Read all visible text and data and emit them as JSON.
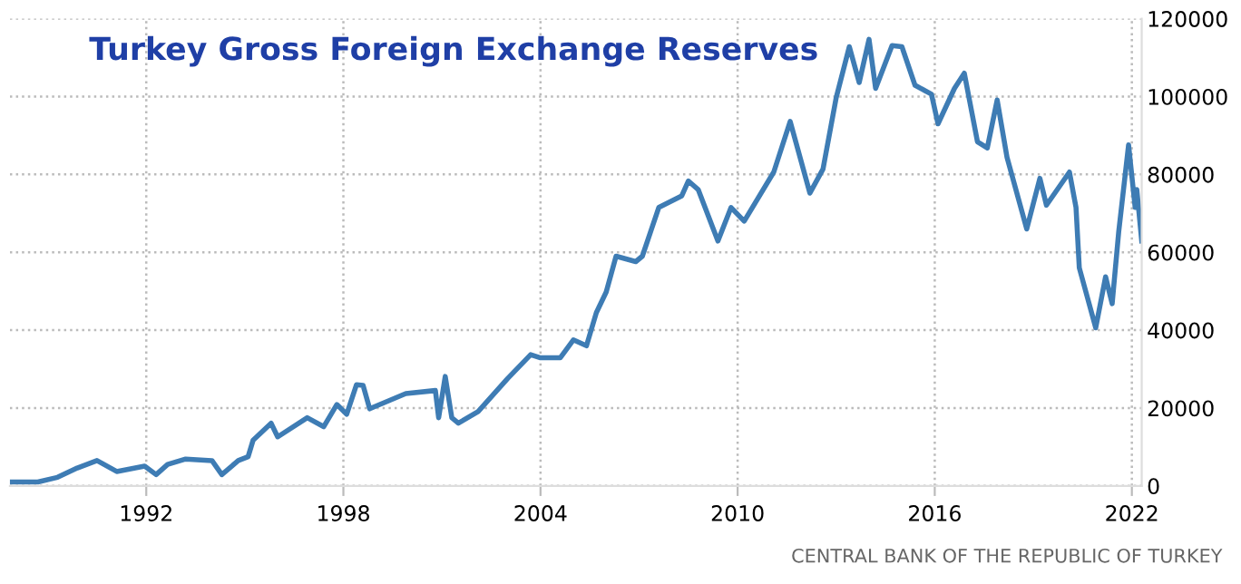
{
  "chart_data": {
    "type": "line",
    "title": "Turkey Gross Foreign Exchange Reserves",
    "annotations": [
      "CENTRAL BANK OF THE REPUBLIC OF TURKEY"
    ],
    "x": [
      1987.9,
      1988.7,
      1989.3,
      1989.9,
      1990.5,
      1991.1,
      1991.95,
      1992.3,
      1992.65,
      1993.2,
      1994.0,
      1994.3,
      1994.8,
      1995.1,
      1995.25,
      1995.8,
      1996.0,
      1996.9,
      1997.4,
      1997.8,
      1998.1,
      1998.4,
      1998.6,
      1998.8,
      1999.9,
      2000.8,
      2000.9,
      2001.1,
      2001.3,
      2001.5,
      2002.1,
      2003.0,
      2003.7,
      2004.0,
      2004.6,
      2005.0,
      2005.4,
      2005.7,
      2006.0,
      2006.3,
      2006.9,
      2007.1,
      2007.6,
      2008.3,
      2008.5,
      2008.8,
      2009.4,
      2009.8,
      2010.2,
      2011.1,
      2011.6,
      2011.9,
      2012.2,
      2012.6,
      2013.0,
      2013.4,
      2013.7,
      2014.0,
      2014.2,
      2014.7,
      2015.0,
      2015.4,
      2015.9,
      2016.1,
      2016.6,
      2016.9,
      2017.3,
      2017.6,
      2017.9,
      2018.2,
      2018.8,
      2019.2,
      2019.4,
      2020.1,
      2020.3,
      2020.4,
      2020.9,
      2021.2,
      2021.4,
      2021.6,
      2021.9,
      2022.1,
      2022.15,
      2022.3
    ],
    "series": [
      {
        "color": "#3e7cb4",
        "values": [
          1000,
          1000,
          2200,
          4600,
          6500,
          3700,
          5100,
          2900,
          5500,
          6900,
          6500,
          2900,
          6500,
          7500,
          11700,
          16100,
          12600,
          17500,
          15200,
          20900,
          18400,
          26000,
          25800,
          19800,
          23700,
          24500,
          17500,
          28100,
          17500,
          16100,
          19100,
          27600,
          33700,
          32900,
          32900,
          37500,
          36000,
          44500,
          49800,
          59000,
          57600,
          59000,
          71500,
          74500,
          78300,
          76100,
          62900,
          71500,
          68000,
          80600,
          93600,
          84400,
          75200,
          81400,
          99700,
          112800,
          103600,
          114700,
          102100,
          113100,
          112800,
          102900,
          100600,
          93000,
          102100,
          106000,
          88400,
          86800,
          99100,
          84400,
          66000,
          79000,
          72100,
          80600,
          71500,
          56000,
          40600,
          53700,
          46800,
          65300,
          87600,
          71500,
          76100,
          62900
        ]
      }
    ],
    "xlim": [
      1987.85,
      2022.3
    ],
    "ylim": [
      0,
      120000
    ],
    "xticks": [
      1992,
      1998,
      2004,
      2010,
      2016,
      2022
    ],
    "yticks": [
      0,
      20000,
      40000,
      60000,
      80000,
      100000,
      120000
    ],
    "grid": true,
    "line_style": "solid",
    "marker": "none",
    "legend": false
  }
}
